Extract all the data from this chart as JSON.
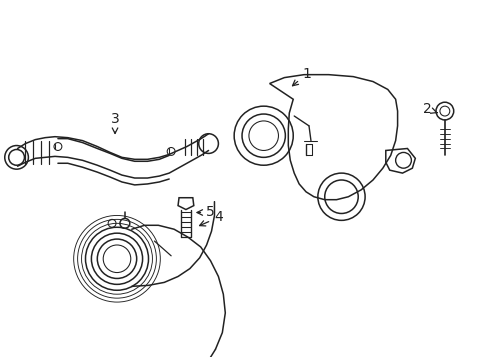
{
  "background_color": "#ffffff",
  "line_color": "#222222",
  "line_width": 1.1,
  "figsize": [
    4.89,
    3.6
  ],
  "dpi": 100,
  "label_fontsize": 10
}
